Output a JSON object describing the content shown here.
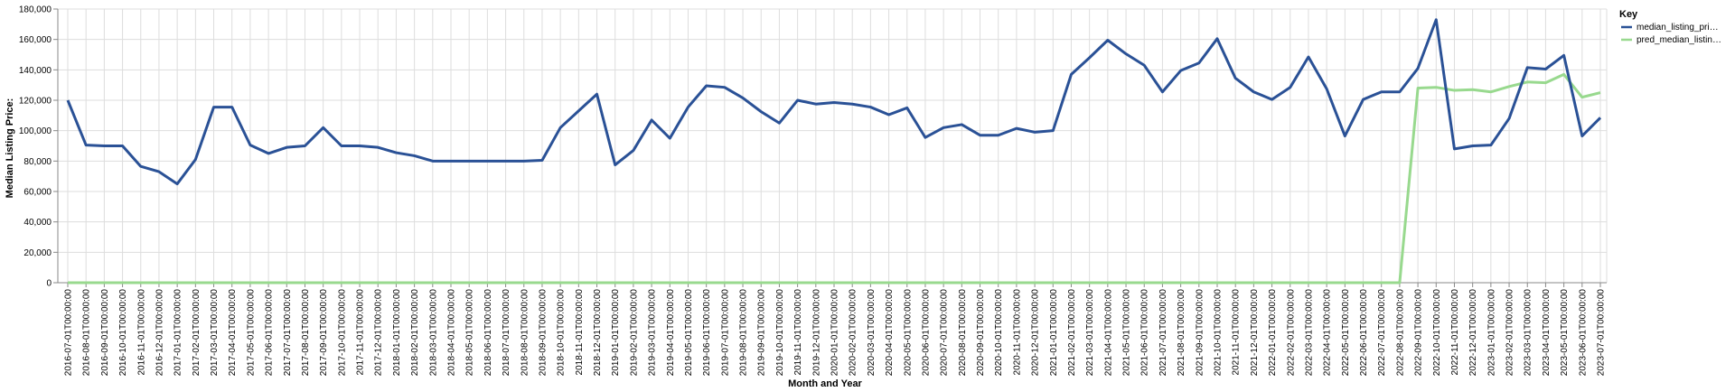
{
  "chart_data": {
    "type": "line",
    "xlabel": "Month and Year",
    "ylabel": "Median Listing Price:",
    "ylim": [
      0,
      180000
    ],
    "yticks": [
      "0",
      "20,000",
      "40,000",
      "60,000",
      "80,000",
      "100,000",
      "120,000",
      "140,000",
      "160,000",
      "180,000"
    ],
    "ytick_values": [
      0,
      20000,
      40000,
      60000,
      80000,
      100000,
      120000,
      140000,
      160000,
      180000
    ],
    "grid": true,
    "legend": {
      "title": "Key",
      "position": "top-right"
    },
    "x": [
      "2016-07-01T00:00:00",
      "2016-08-01T00:00:00",
      "2016-09-01T00:00:00",
      "2016-10-01T00:00:00",
      "2016-11-01T00:00:00",
      "2016-12-01T00:00:00",
      "2017-01-01T00:00:00",
      "2017-02-01T00:00:00",
      "2017-03-01T00:00:00",
      "2017-04-01T00:00:00",
      "2017-05-01T00:00:00",
      "2017-06-01T00:00:00",
      "2017-07-01T00:00:00",
      "2017-08-01T00:00:00",
      "2017-09-01T00:00:00",
      "2017-10-01T00:00:00",
      "2017-11-01T00:00:00",
      "2017-12-01T00:00:00",
      "2018-01-01T00:00:00",
      "2018-02-01T00:00:00",
      "2018-03-01T00:00:00",
      "2018-04-01T00:00:00",
      "2018-05-01T00:00:00",
      "2018-06-01T00:00:00",
      "2018-07-01T00:00:00",
      "2018-08-01T00:00:00",
      "2018-09-01T00:00:00",
      "2018-10-01T00:00:00",
      "2018-11-01T00:00:00",
      "2018-12-01T00:00:00",
      "2019-01-01T00:00:00",
      "2019-02-01T00:00:00",
      "2019-03-01T00:00:00",
      "2019-04-01T00:00:00",
      "2019-05-01T00:00:00",
      "2019-06-01T00:00:00",
      "2019-07-01T00:00:00",
      "2019-08-01T00:00:00",
      "2019-09-01T00:00:00",
      "2019-10-01T00:00:00",
      "2019-11-01T00:00:00",
      "2019-12-01T00:00:00",
      "2020-01-01T00:00:00",
      "2020-02-01T00:00:00",
      "2020-03-01T00:00:00",
      "2020-04-01T00:00:00",
      "2020-05-01T00:00:00",
      "2020-06-01T00:00:00",
      "2020-07-01T00:00:00",
      "2020-08-01T00:00:00",
      "2020-09-01T00:00:00",
      "2020-10-01T00:00:00",
      "2020-11-01T00:00:00",
      "2020-12-01T00:00:00",
      "2021-01-01T00:00:00",
      "2021-02-01T00:00:00",
      "2021-03-01T00:00:00",
      "2021-04-01T00:00:00",
      "2021-05-01T00:00:00",
      "2021-06-01T00:00:00",
      "2021-07-01T00:00:00",
      "2021-08-01T00:00:00",
      "2021-09-01T00:00:00",
      "2021-10-01T00:00:00",
      "2021-11-01T00:00:00",
      "2021-12-01T00:00:00",
      "2022-01-01T00:00:00",
      "2022-02-01T00:00:00",
      "2022-03-01T00:00:00",
      "2022-04-01T00:00:00",
      "2022-05-01T00:00:00",
      "2022-06-01T00:00:00",
      "2022-07-01T00:00:00",
      "2022-08-01T00:00:00",
      "2022-09-01T00:00:00",
      "2022-10-01T00:00:00",
      "2022-11-01T00:00:00",
      "2022-12-01T00:00:00",
      "2023-01-01T00:00:00",
      "2023-02-01T00:00:00",
      "2023-03-01T00:00:00",
      "2023-04-01T00:00:00",
      "2023-05-01T00:00:00",
      "2023-06-01T00:00:00",
      "2023-07-01T00:00:00"
    ],
    "series": [
      {
        "name": "median_listing_pri…",
        "color": "#2a5196",
        "values": [
          120000,
          90500,
          90000,
          90000,
          76500,
          73000,
          65000,
          81000,
          115500,
          115500,
          90500,
          85000,
          89000,
          90000,
          102000,
          90000,
          90000,
          89000,
          85500,
          83500,
          80000,
          80000,
          80000,
          80000,
          80000,
          80000,
          80500,
          102000,
          113000,
          124000,
          77500,
          87000,
          107000,
          95000,
          115500,
          129500,
          128500,
          121500,
          112500,
          105000,
          120000,
          117500,
          118500,
          117500,
          115500,
          110500,
          115000,
          95500,
          102000,
          104000,
          97000,
          97000,
          101500,
          99000,
          100000,
          137000,
          148000,
          159500,
          150500,
          143000,
          125500,
          139500,
          144500,
          160500,
          134500,
          125500,
          120500,
          128500,
          148500,
          127500,
          96500,
          120500,
          125500,
          125500,
          141000,
          173000,
          88000,
          90000,
          90500,
          108000,
          141500,
          140500,
          149500,
          96500,
          108500
        ]
      },
      {
        "name": "pred_median_listin…",
        "color": "#98d98e",
        "values": [
          0,
          0,
          0,
          0,
          0,
          0,
          0,
          0,
          0,
          0,
          0,
          0,
          0,
          0,
          0,
          0,
          0,
          0,
          0,
          0,
          0,
          0,
          0,
          0,
          0,
          0,
          0,
          0,
          0,
          0,
          0,
          0,
          0,
          0,
          0,
          0,
          0,
          0,
          0,
          0,
          0,
          0,
          0,
          0,
          0,
          0,
          0,
          0,
          0,
          0,
          0,
          0,
          0,
          0,
          0,
          0,
          0,
          0,
          0,
          0,
          0,
          0,
          0,
          0,
          0,
          0,
          0,
          0,
          0,
          0,
          0,
          0,
          0,
          0,
          128000,
          128500,
          126500,
          127000,
          125500,
          129000,
          132000,
          131500,
          137000,
          122000,
          125000
        ]
      }
    ]
  }
}
